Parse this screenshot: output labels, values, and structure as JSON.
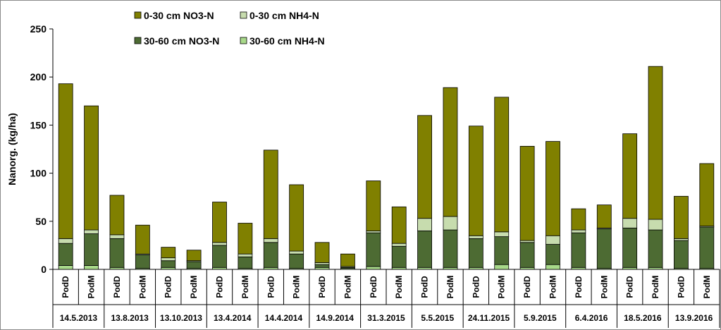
{
  "chart_data": {
    "type": "bar",
    "stacked": true,
    "title": "",
    "xlabel": "",
    "ylabel": "Nanorg. (kg/ha)",
    "ylim": [
      0,
      250
    ],
    "yticks": [
      0,
      50,
      100,
      150,
      200,
      250
    ],
    "grid": false,
    "legend_position": "top-left",
    "categories": [
      "PodD",
      "PodM",
      "PodD",
      "PodM",
      "PodD",
      "PodM",
      "PodD",
      "PodM",
      "PodD",
      "PodM",
      "PodD",
      "PodM",
      "PodD",
      "PodM",
      "PodD",
      "PodM",
      "PodD",
      "PodM",
      "PodD",
      "PodM",
      "PodD",
      "PodM",
      "PodD",
      "PodM",
      "PodD",
      "PodM"
    ],
    "groups": [
      "14.5.2013",
      "13.8.2013",
      "13.10.2013",
      "13.4.2014",
      "14.4.2014",
      "14.9.2014",
      "31.3.2015",
      "5.5.2015",
      "24.11.2015",
      "5.9.2015",
      "6.4.2016",
      "18.5.2016",
      "13.9.2016"
    ],
    "series": [
      {
        "name": "30-60 cm NH4-N",
        "color": "#a8d98a",
        "values": [
          4,
          4,
          2,
          1,
          2,
          1,
          2,
          1,
          2,
          1,
          2,
          1,
          3,
          2,
          2,
          2,
          2,
          5,
          2,
          5,
          2,
          1,
          2,
          2,
          1,
          1
        ]
      },
      {
        "name": "30-60 cm NO3-N",
        "color": "#4d6b33",
        "values": [
          23,
          33,
          30,
          14,
          7,
          7,
          23,
          12,
          26,
          15,
          3,
          1,
          35,
          22,
          38,
          39,
          30,
          29,
          26,
          21,
          36,
          41,
          41,
          39,
          29,
          43
        ]
      },
      {
        "name": "0-30 cm NH4-N",
        "color": "#c7dcae",
        "values": [
          5,
          4,
          4,
          1,
          3,
          1,
          3,
          3,
          4,
          3,
          2,
          1,
          2,
          3,
          13,
          14,
          3,
          5,
          2,
          9,
          3,
          1,
          10,
          11,
          2,
          1
        ]
      },
      {
        "name": "0-30 cm NO3-N",
        "color": "#808000",
        "values": [
          161,
          129,
          41,
          30,
          11,
          11,
          42,
          32,
          92,
          69,
          21,
          13,
          52,
          38,
          107,
          134,
          114,
          140,
          98,
          98,
          22,
          24,
          88,
          159,
          44,
          65
        ]
      }
    ],
    "legend_order": [
      "0-30 cm NO3-N",
      "0-30 cm NH4-N",
      "30-60 cm NO3-N",
      "30-60 cm NH4-N"
    ]
  }
}
